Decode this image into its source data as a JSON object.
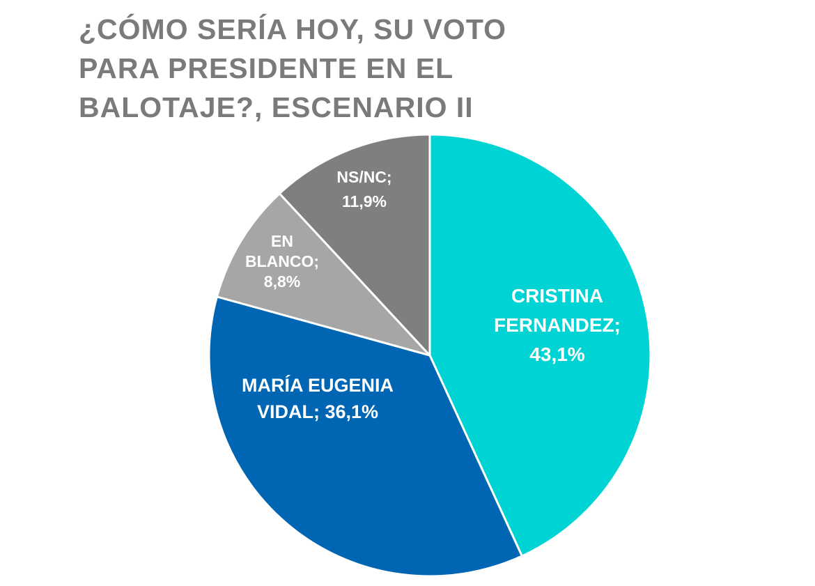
{
  "chart_data": {
    "type": "pie",
    "title_lines": [
      "¿CÓMO SERÍA HOY, SU VOTO",
      "PARA PRESIDENTE EN EL",
      "BALOTAJE?, ESCENARIO II"
    ],
    "slices": [
      {
        "label_lines": [
          "CRISTINA",
          "FERNANDEZ;",
          "43,1%"
        ],
        "value": 43.1,
        "color": "#00d3d3"
      },
      {
        "label_lines": [
          "MARÍA EUGENIA",
          "VIDAL; 36,1%"
        ],
        "value": 36.1,
        "color": "#0066b3"
      },
      {
        "label_lines": [
          "EN",
          "BLANCO;",
          "8,8%"
        ],
        "value": 8.8,
        "color": "#a6a6a6"
      },
      {
        "label_lines": [
          "NS/NC;",
          "11,9%"
        ],
        "value": 11.9,
        "color": "#7f7f7f"
      }
    ],
    "start_angle": "top",
    "direction": "clockwise",
    "legend": "none"
  }
}
